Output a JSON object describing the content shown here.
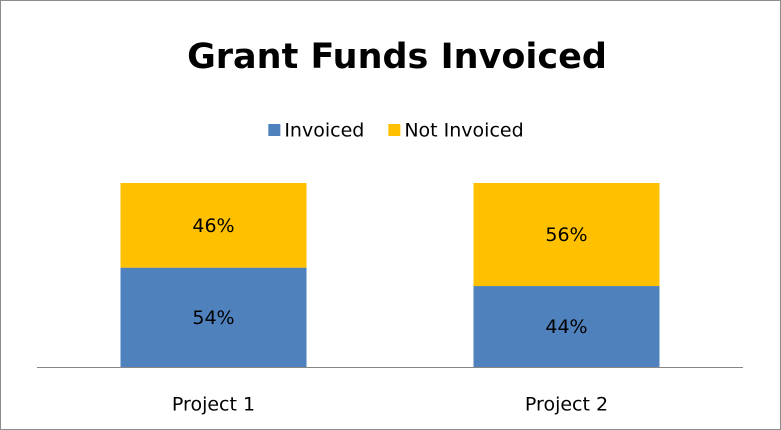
{
  "chart_data": {
    "type": "stacked_bar",
    "title": "Grant Funds Invoiced",
    "categories": [
      "Project 1",
      "Project 2"
    ],
    "series": [
      {
        "name": "Invoiced",
        "color": "#4f81bd",
        "values": [
          54,
          44
        ],
        "value_labels": [
          "54%",
          "44%"
        ]
      },
      {
        "name": "Not Invoiced",
        "color": "#ffc000",
        "values": [
          46,
          56
        ],
        "value_labels": [
          "46%",
          "56%"
        ]
      }
    ],
    "legend": "top"
  }
}
